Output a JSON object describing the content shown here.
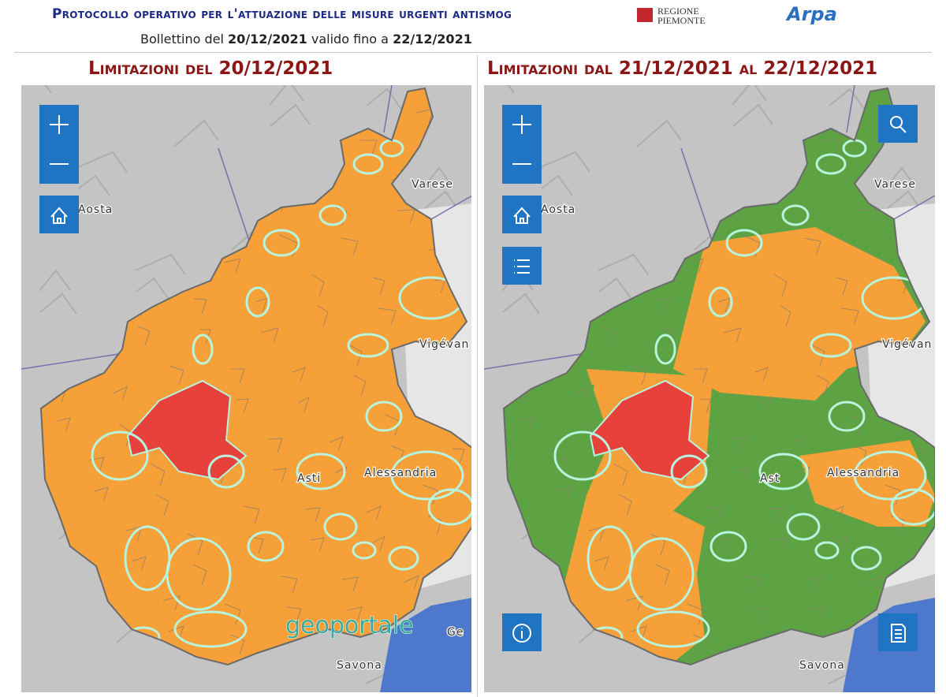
{
  "header": {
    "title": "Protocollo operativo per l'attuazione delle misure urgenti antismog",
    "bulletin": {
      "prefix": "Bollettino del",
      "date_from": "20/12/2021",
      "middle": "valido fino a",
      "date_to": "22/12/2021"
    },
    "logos": {
      "regione": [
        "REGIONE",
        "PIEMONTE"
      ],
      "arpa": "Arpa"
    }
  },
  "panels": [
    {
      "title": "Limitazioni del 20/12/2021",
      "map_labels": [
        "Aosta",
        "Varese",
        "Vigévan",
        "Savona",
        "Asti",
        "Alessandria",
        "Ge"
      ],
      "watermark": "geoportale"
    },
    {
      "title": "Limitazioni dal 21/12/2021 al 22/12/2021",
      "map_labels": [
        "Aosta",
        "Varese",
        "Vigévan",
        "Savona",
        "Ast",
        "Alessandria"
      ]
    }
  ]
}
